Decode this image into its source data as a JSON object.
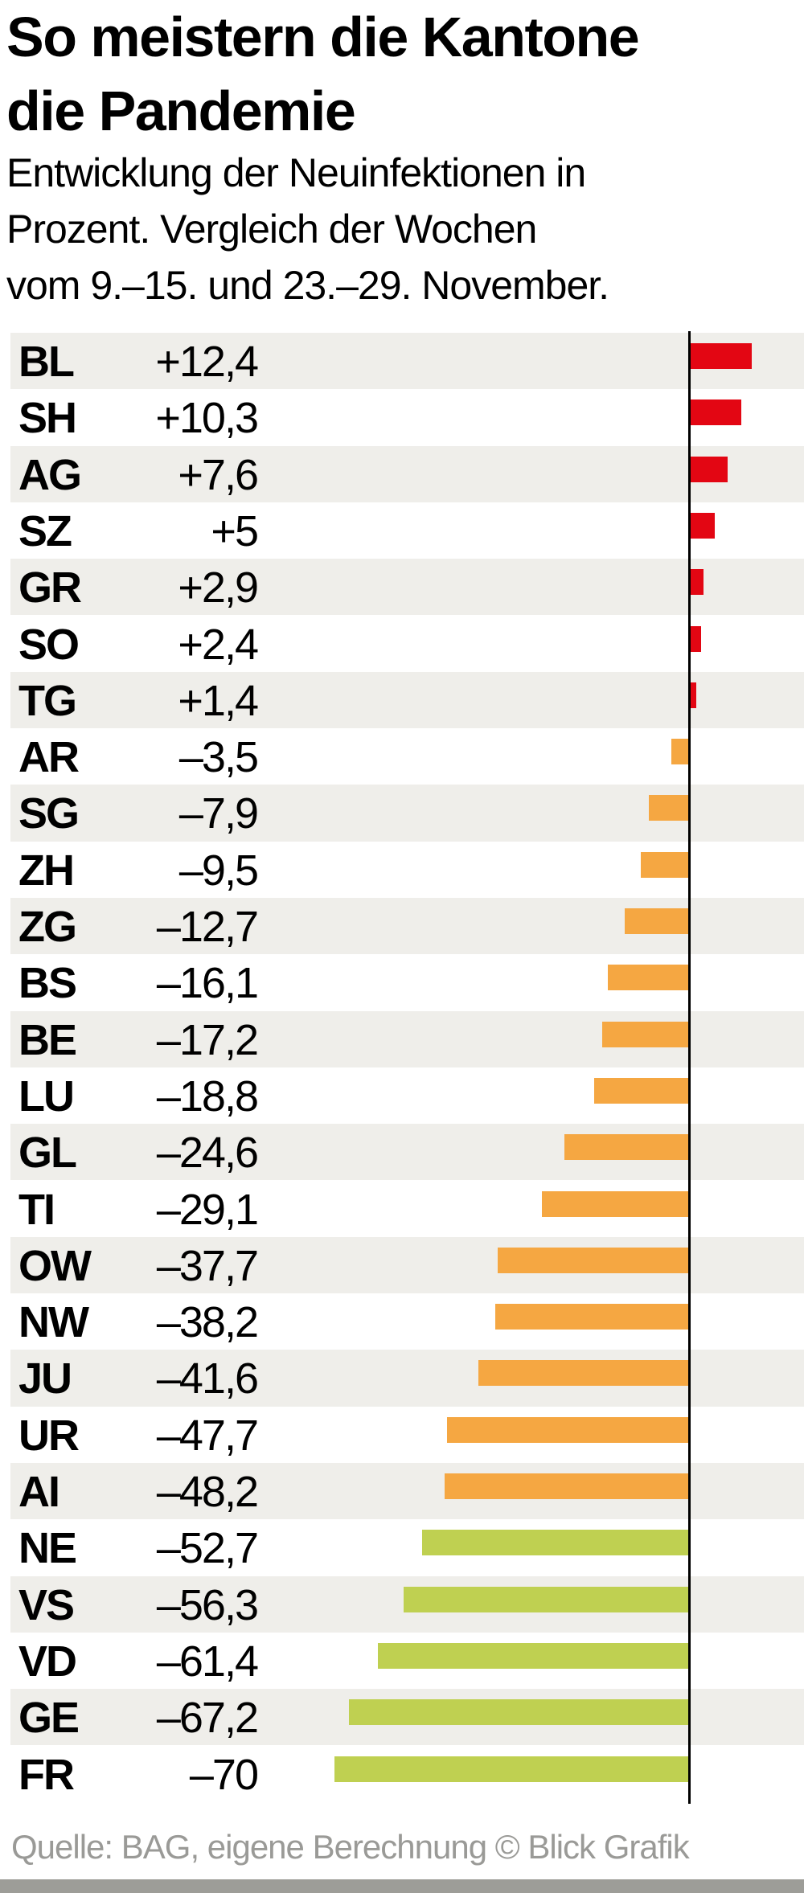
{
  "chart_data": {
    "type": "bar",
    "orientation": "horizontal",
    "title": "So meistern die Kantone die Pandemie",
    "subtitle": "Entwicklung der Neuinfektionen in Prozent. Vergleich der Wochen vom 9.–15. und 23.–29. November.",
    "subtitle_lines": [
      "Entwicklung der Neuinfektionen in",
      "Prozent. Vergleich der Wochen",
      "vom 9.–15. und 23.–29. November."
    ],
    "categories": [
      "BL",
      "SH",
      "AG",
      "SZ",
      "GR",
      "SO",
      "TG",
      "AR",
      "SG",
      "ZH",
      "ZG",
      "BS",
      "BE",
      "LU",
      "GL",
      "TI",
      "OW",
      "NW",
      "JU",
      "UR",
      "AI",
      "NE",
      "VS",
      "VD",
      "GE",
      "FR"
    ],
    "values": [
      12.4,
      10.3,
      7.6,
      5,
      2.9,
      2.4,
      1.4,
      -3.5,
      -7.9,
      -9.5,
      -12.7,
      -16.1,
      -17.2,
      -18.8,
      -24.6,
      -29.1,
      -37.7,
      -38.2,
      -41.6,
      -47.7,
      -48.2,
      -52.7,
      -56.3,
      -61.4,
      -67.2,
      -70
    ],
    "labels": [
      "+12,4",
      "+10,3",
      "+7,6",
      "+5",
      "+2,9",
      "+2,4",
      "+1,4",
      "–3,5",
      "–7,9",
      "–9,5",
      "–12,7",
      "–16,1",
      "–17,2",
      "–18,8",
      "–24,6",
      "–29,1",
      "–37,7",
      "–38,2",
      "–41,6",
      "–47,7",
      "–48,2",
      "–52,7",
      "–56,3",
      "–61,4",
      "–67,2",
      "–70"
    ],
    "xlim": [
      -70,
      12.4
    ],
    "grid": false,
    "colors": {
      "positive": "#e30613",
      "moderate_decline": "#f5a742",
      "strong_decline": "#bfd051",
      "row_stripe": "#efeeea"
    },
    "source": "Quelle: BAG, eigene Berechnung  © Blick Grafik"
  }
}
